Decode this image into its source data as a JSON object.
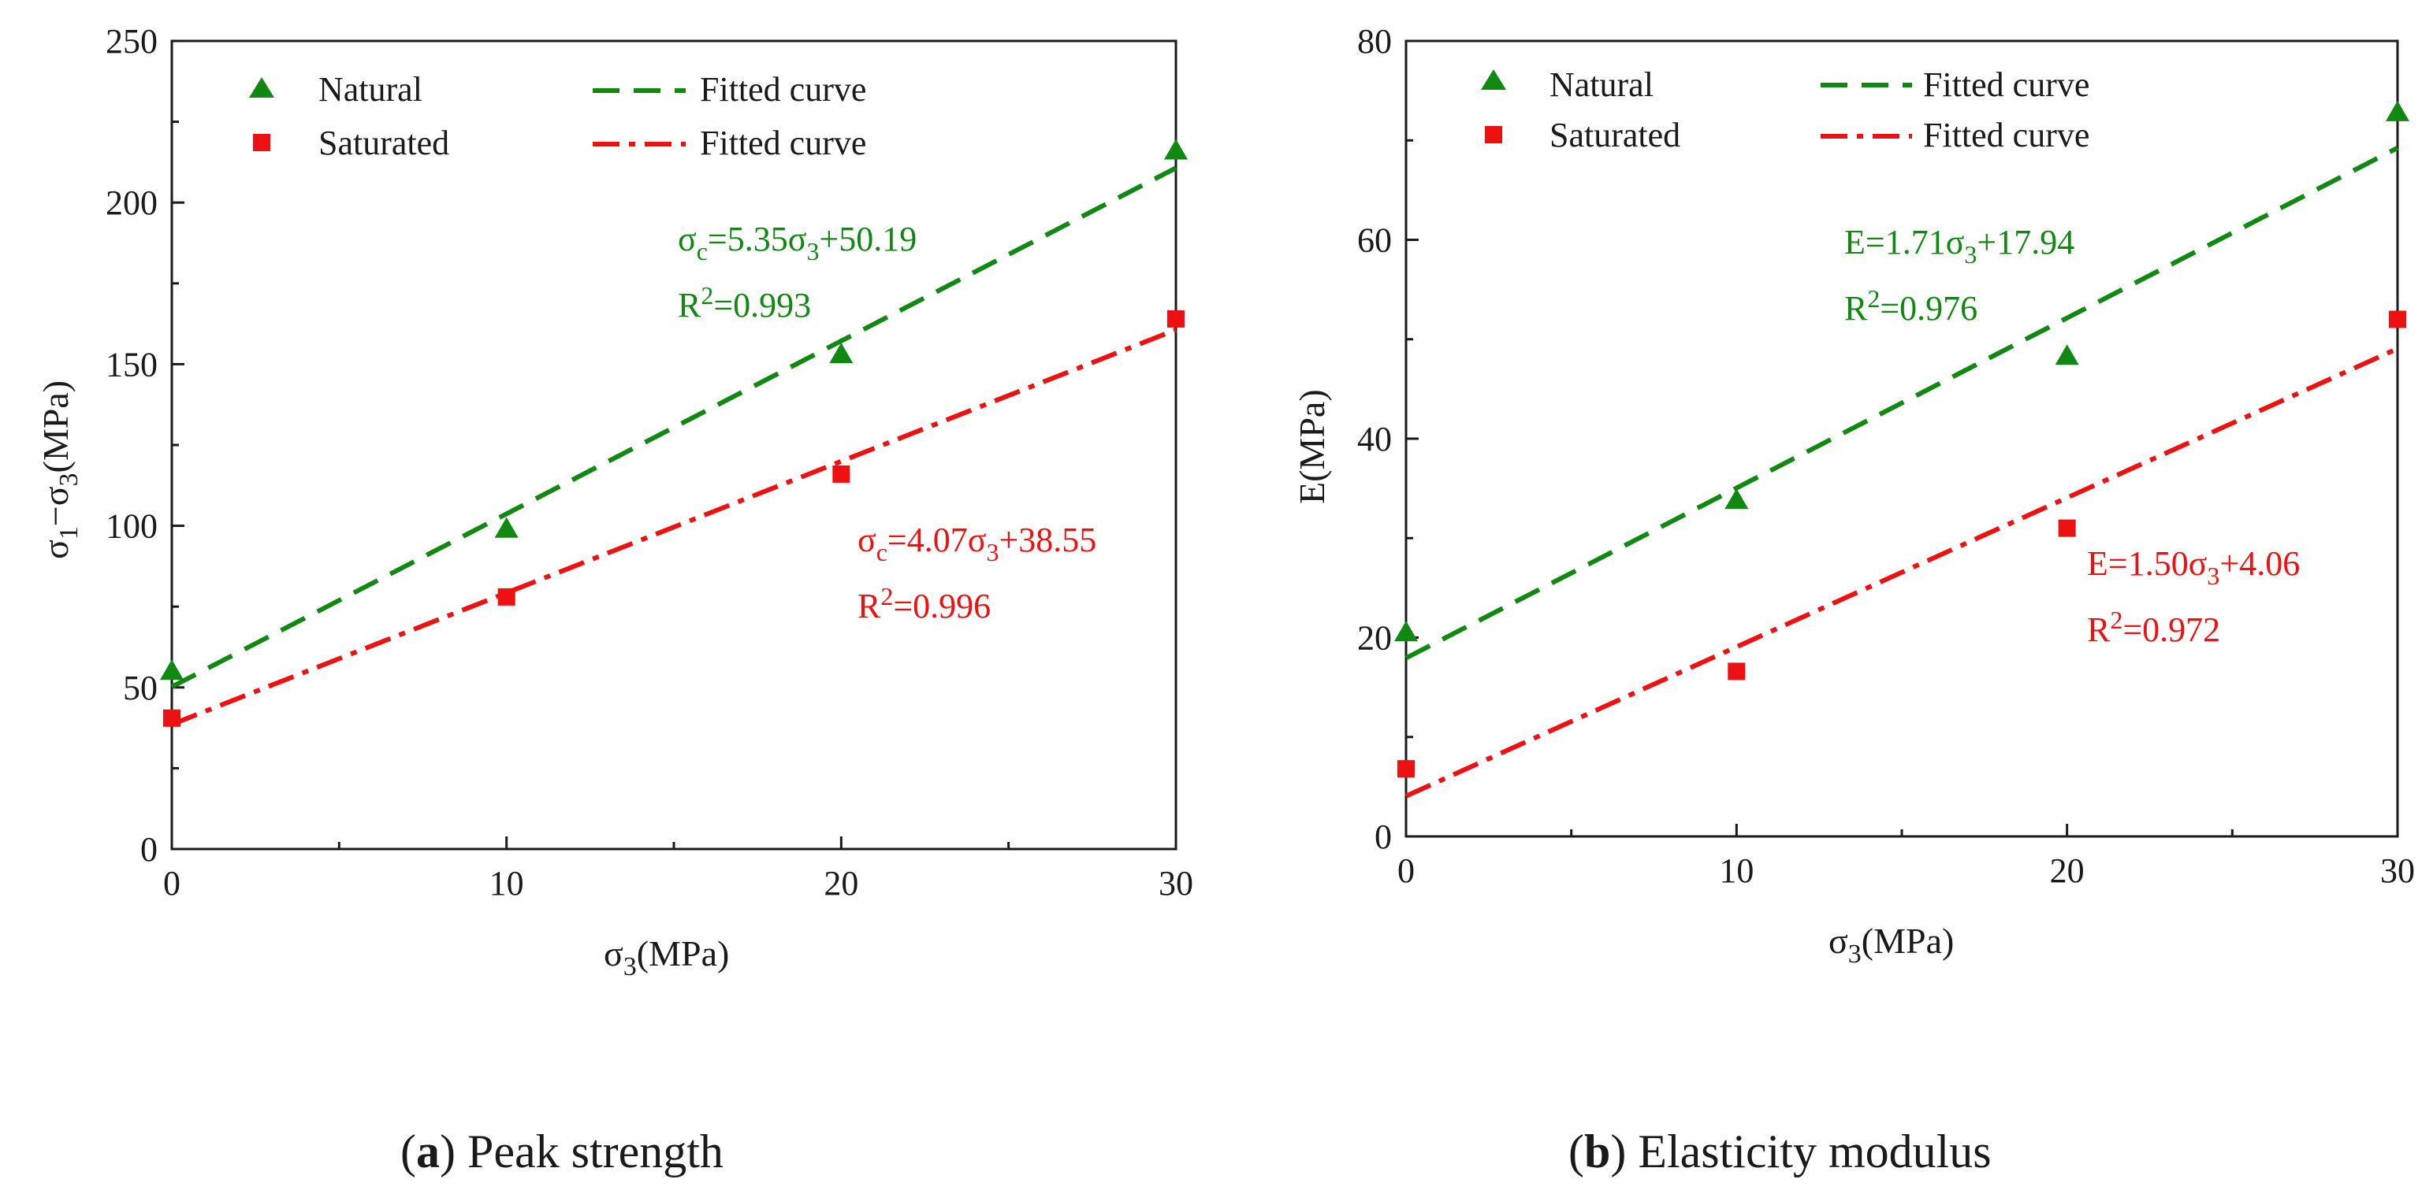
{
  "chart_data": [
    {
      "type": "scatter",
      "caption": {
        "letter": "a",
        "text": "Peak strength"
      },
      "xlabel": {
        "base": "σ",
        "sub": "3",
        "rest": "(MPa)"
      },
      "ylabel": {
        "p1": "σ",
        "s1": "1",
        "p2": "−σ",
        "s2": "3",
        "p3": "(MPa)"
      },
      "xlim": [
        0,
        30
      ],
      "ylim": [
        0,
        250
      ],
      "xticks": [
        0,
        10,
        20,
        30
      ],
      "yticks": [
        0,
        50,
        100,
        150,
        200,
        250
      ],
      "legend": {
        "natural": "Natural",
        "saturated": "Saturated",
        "fit_natural": "Fitted curve",
        "fit_saturated": "Fitted curve"
      },
      "series": [
        {
          "name": "Natural",
          "marker": "triangle",
          "color": "#118811",
          "x": [
            0,
            10,
            20,
            30
          ],
          "y": [
            55,
            99,
            153,
            216
          ]
        },
        {
          "name": "Saturated",
          "marker": "square",
          "color": "#ee1111",
          "x": [
            0,
            10,
            20,
            30
          ],
          "y": [
            40.5,
            78,
            116,
            164
          ]
        }
      ],
      "fits": [
        {
          "color": "#118811",
          "dash": "dash",
          "slope": 5.35,
          "intercept": 50.19,
          "range": [
            0,
            30
          ]
        },
        {
          "color": "#ee1111",
          "dash": "dashdot",
          "slope": 4.07,
          "intercept": 38.55,
          "range": [
            0,
            30
          ]
        }
      ],
      "annotations": [
        {
          "color": "#118811",
          "l1": {
            "a": "σ",
            "b": "c",
            "c": "=5.35σ",
            "d": "3",
            "e": "+50.19"
          },
          "l2": {
            "a": "R",
            "b": "2",
            "c": "=0.993"
          }
        },
        {
          "color": "#ee1111",
          "l1": {
            "a": "σ",
            "b": "c",
            "c": "=4.07σ",
            "d": "3",
            "e": "+38.55"
          },
          "l2": {
            "a": "R",
            "b": "2",
            "c": "=0.996"
          }
        }
      ]
    },
    {
      "type": "scatter",
      "caption": {
        "letter": "b",
        "text": "Elasticity modulus"
      },
      "xlabel": {
        "base": "σ",
        "sub": "3",
        "rest": "(MPa)"
      },
      "ylabel": {
        "text": "E(MPa)"
      },
      "xlim": [
        0,
        30
      ],
      "ylim": [
        0,
        80
      ],
      "xticks": [
        0,
        10,
        20,
        30
      ],
      "yticks": [
        0,
        20,
        40,
        60,
        80
      ],
      "legend": {
        "natural": "Natural",
        "saturated": "Saturated",
        "fit_natural": "Fitted curve",
        "fit_saturated": "Fitted curve"
      },
      "series": [
        {
          "name": "Natural",
          "marker": "triangle",
          "color": "#118811",
          "x": [
            0,
            10,
            20,
            30
          ],
          "y": [
            20.5,
            33.8,
            48.3,
            72.8
          ]
        },
        {
          "name": "Saturated",
          "marker": "square",
          "color": "#ee1111",
          "x": [
            0,
            10,
            20,
            30
          ],
          "y": [
            6.8,
            16.6,
            31,
            52
          ]
        }
      ],
      "fits": [
        {
          "color": "#118811",
          "dash": "dash",
          "slope": 1.71,
          "intercept": 17.94,
          "range": [
            0,
            30
          ]
        },
        {
          "color": "#ee1111",
          "dash": "dashdot",
          "slope": 1.5,
          "intercept": 4.06,
          "range": [
            0,
            30
          ]
        }
      ],
      "annotations": [
        {
          "color": "#118811",
          "l1": {
            "a": "E=1.71σ",
            "b": "3",
            "c": "+17.94"
          },
          "l2": {
            "a": "R",
            "b": "2",
            "c": "=0.976"
          }
        },
        {
          "color": "#ee1111",
          "l1": {
            "a": "E=1.50σ",
            "b": "3",
            "c": "+4.06"
          },
          "l2": {
            "a": "R",
            "b": "2",
            "c": "=0.972"
          }
        }
      ]
    }
  ]
}
